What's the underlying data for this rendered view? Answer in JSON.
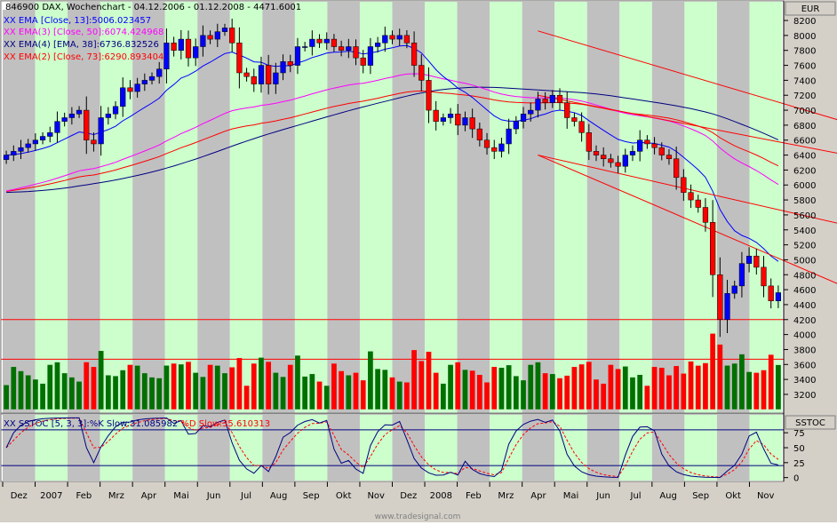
{
  "header": {
    "title": "846900  DAX, Wochenchart - 04.12.2006 - 01.12.2008 - 4471.6001",
    "currency": "EUR",
    "stoch_panel": "SSTOC",
    "watermark": "www.tradesignal.com"
  },
  "legend": [
    {
      "marker": "XX",
      "text": "EMA [Close, 13]:5006.023457",
      "color": "#0000ff"
    },
    {
      "marker": "XX",
      "text": "EMA(3) [Close, 50]:6074.424968",
      "color": "#ff00ff"
    },
    {
      "marker": "XX",
      "text": "EMA(4) [EMA, 38]:6736.832526",
      "color": "#000080"
    },
    {
      "marker": "XX",
      "text": "EMA(2) [Close, 73]:6290.893404",
      "color": "#ff0000"
    }
  ],
  "stoch_legend": [
    {
      "text": "XX SSTOC [5, 3, 3]:%K Slow:31.085982",
      "color": "#000080"
    },
    {
      "text": " %D Slow:35.610313",
      "color": "#ff0000"
    }
  ],
  "colors": {
    "up": "#0000ff",
    "down": "#ff0000",
    "vol_up": "#007000",
    "vol_down": "#ff0000",
    "band_green": "#ccffcc",
    "band_gray": "#c0c0c0",
    "ema13": "#0000ff",
    "ema50": "#ff00ff",
    "ema38": "#000080",
    "ema73": "#ff0000",
    "stoch_k": "#000080",
    "stoch_d": "#ff0000"
  },
  "chart_data": {
    "type": "candlestick",
    "y_axis": {
      "ticks": [
        4000,
        4200,
        4400,
        4600,
        4800,
        5000,
        5200,
        5400,
        5600,
        5800,
        6000,
        6200,
        6400,
        6600,
        6800,
        7000,
        7200,
        7400,
        7600,
        7800,
        8000,
        8200
      ],
      "range": [
        2950,
        8450
      ]
    },
    "volume_axis": {
      "ticks": [
        3200,
        3400,
        3600,
        3800
      ]
    },
    "x_axis": {
      "ticks": [
        "Dez",
        "2007",
        "Feb",
        "Mrz",
        "Apr",
        "Mai",
        "Jun",
        "Jul",
        "Aug",
        "Sep",
        "Okt",
        "Nov",
        "Dez",
        "2008",
        "Feb",
        "Mrz",
        "Apr",
        "Mai",
        "Jun",
        "Jul",
        "Aug",
        "Sep",
        "Okt",
        "Nov"
      ]
    },
    "stoch_axis": {
      "ticks": [
        0,
        25,
        50,
        75
      ],
      "range": [
        -5,
        105
      ]
    },
    "horizontal_lines": [
      4200,
      3670
    ],
    "stoch_lines": [
      20,
      80
    ],
    "trendlines": [
      {
        "from": [
          73,
          8060
        ],
        "to": [
          134,
          6300
        ]
      },
      {
        "from": [
          73,
          7200
        ],
        "to": [
          134,
          6050
        ]
      },
      {
        "from": [
          73,
          6400
        ],
        "to": [
          134,
          5050
        ]
      },
      {
        "from": [
          73,
          6400
        ],
        "to": [
          134,
          3850
        ]
      }
    ],
    "weekly_close": [
      6400,
      6450,
      6500,
      6550,
      6600,
      6650,
      6700,
      6850,
      6900,
      6950,
      7000,
      6600,
      6550,
      6900,
      6950,
      7050,
      7300,
      7250,
      7350,
      7400,
      7450,
      7550,
      7900,
      7800,
      7950,
      7700,
      7850,
      8000,
      7950,
      8050,
      8100,
      7900,
      7500,
      7450,
      7350,
      7600,
      7350,
      7500,
      7650,
      7600,
      7850,
      7850,
      7950,
      7900,
      7950,
      7850,
      7800,
      7850,
      7700,
      7600,
      7850,
      7900,
      8000,
      7950,
      8000,
      7900,
      7600,
      7400,
      7000,
      6850,
      6900,
      6950,
      6800,
      6900,
      6750,
      6600,
      6500,
      6450,
      6550,
      6750,
      6850,
      6950,
      7000,
      7150,
      7100,
      7200,
      7100,
      6900,
      6850,
      6700,
      6450,
      6400,
      6350,
      6300,
      6250,
      6400,
      6450,
      6600,
      6550,
      6500,
      6400,
      6350,
      6100,
      5900,
      5800,
      5700,
      5500,
      4800,
      4200,
      4550,
      4650,
      4950,
      5050,
      4900,
      4650,
      4450,
      4560
    ]
  }
}
